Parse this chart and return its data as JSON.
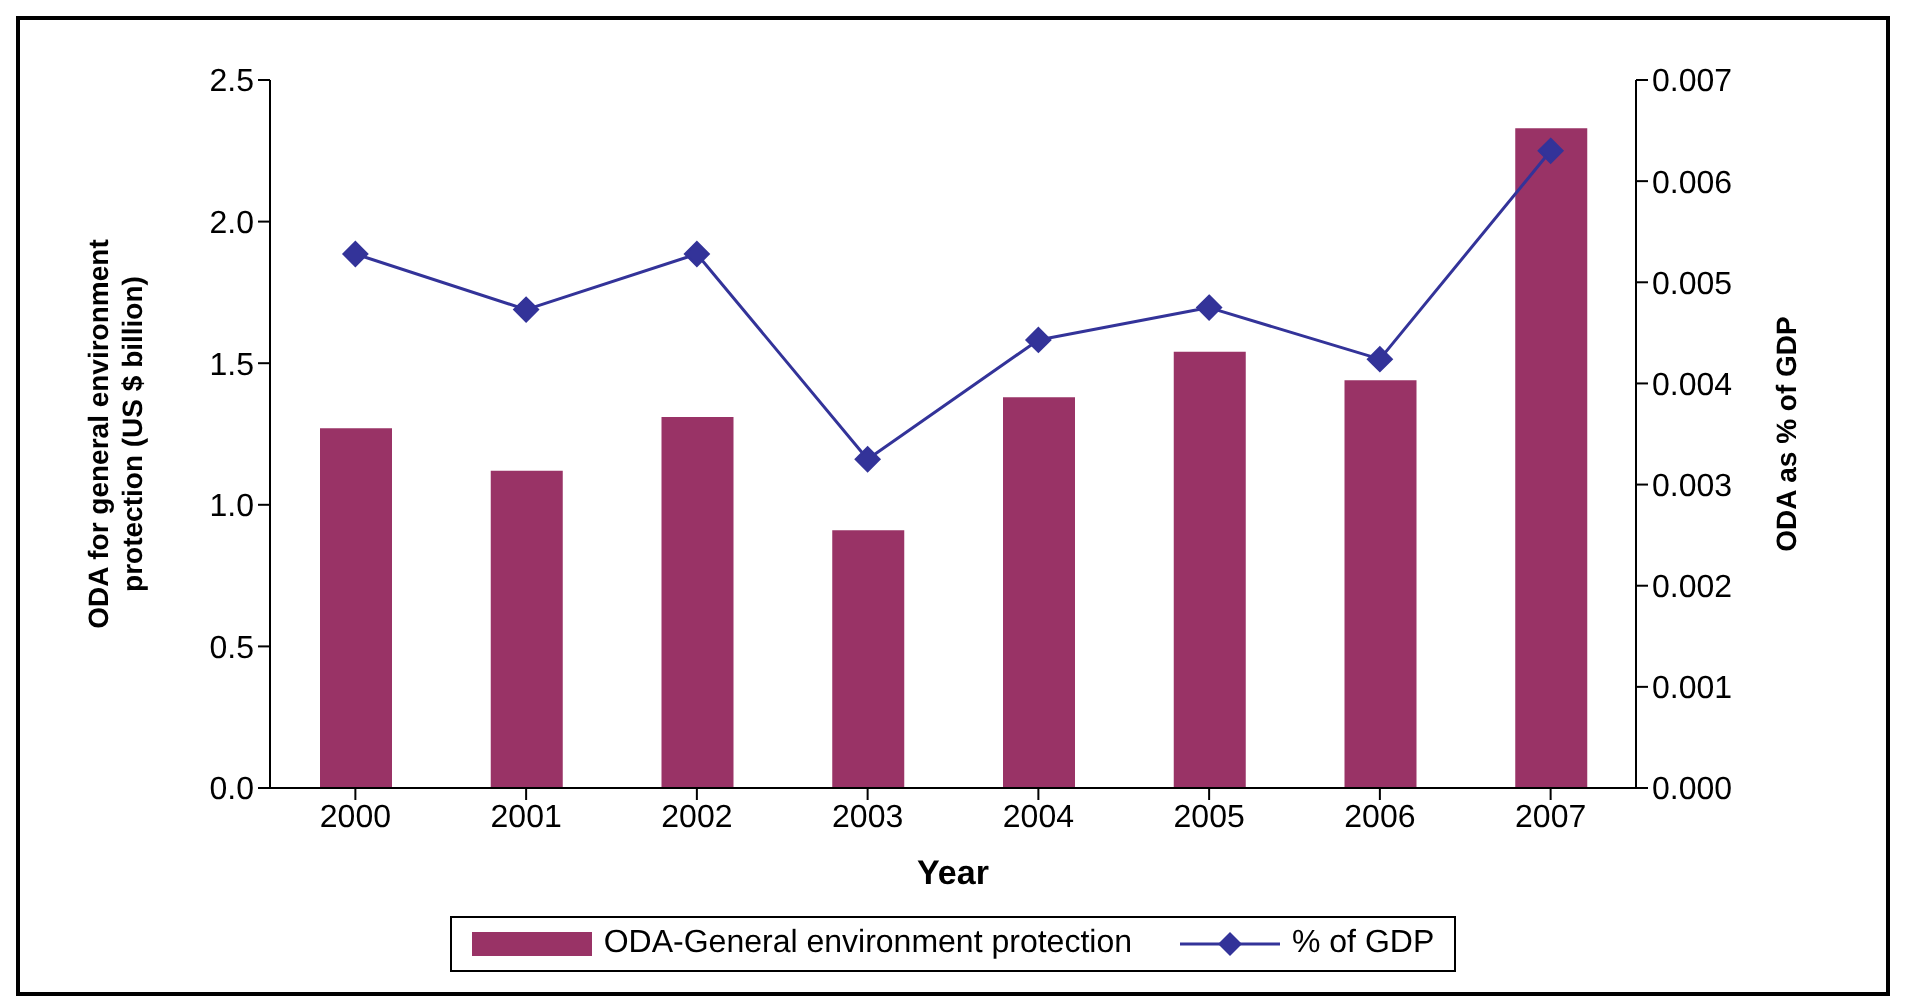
{
  "chart_data": {
    "type": "bar",
    "xlabel": "Year",
    "ylabel": "ODA for general environment protection (US $ billion)",
    "y2label": "ODA as % of GDP",
    "categories": [
      "2000",
      "2001",
      "2002",
      "2003",
      "2004",
      "2005",
      "2006",
      "2007"
    ],
    "series": [
      {
        "name": "ODA-General environment protection",
        "color": "#993366",
        "values": [
          1.27,
          1.12,
          1.31,
          0.91,
          1.38,
          1.54,
          1.44,
          2.33
        ]
      },
      {
        "name": "% of GDP",
        "type": "line",
        "axis": "y2",
        "color": "#333399",
        "marker": "diamond",
        "values": [
          0.00528,
          0.00473,
          0.00528,
          0.00325,
          0.00443,
          0.00475,
          0.00424,
          0.0063
        ]
      }
    ],
    "ylim": [
      0,
      2.5
    ],
    "yticks": [
      {
        "value": 0,
        "label": "0.0"
      },
      {
        "value": 0.5,
        "label": "0.5"
      },
      {
        "value": 1,
        "label": "1.0"
      },
      {
        "value": 1.5,
        "label": "1.5"
      },
      {
        "value": 2,
        "label": "2.0"
      },
      {
        "value": 2.5,
        "label": "2.5"
      }
    ],
    "y2lim": [
      0,
      0.007
    ],
    "y2ticks": [
      {
        "value": 0,
        "label": "0.000"
      },
      0.001,
      0.002,
      0.003,
      0.004,
      0.005,
      0.006,
      0.007
    ],
    "grid": false,
    "legend": "bottom"
  }
}
